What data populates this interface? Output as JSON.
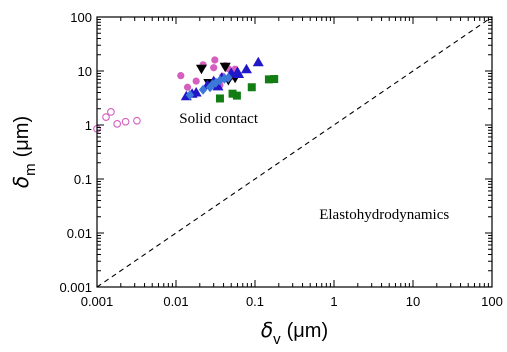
{
  "chart_data": {
    "type": "scatter",
    "title": "",
    "xlabel": {
      "symbol": "δ",
      "subscript": "v",
      "unit": "(μm)"
    },
    "ylabel": {
      "symbol": "δ",
      "subscript": "m",
      "unit": "(μm)"
    },
    "x_scale": "log",
    "y_scale": "log",
    "xlim": [
      0.001,
      100
    ],
    "ylim": [
      0.001,
      100
    ],
    "x_ticks": [
      {
        "value": 0.001,
        "label": "0.001"
      },
      {
        "value": 0.01,
        "label": "0.01"
      },
      {
        "value": 0.1,
        "label": "0.1"
      },
      {
        "value": 1,
        "label": "1"
      },
      {
        "value": 10,
        "label": "10"
      },
      {
        "value": 100,
        "label": "100"
      }
    ],
    "y_ticks": [
      {
        "value": 0.001,
        "label": "0.001"
      },
      {
        "value": 0.01,
        "label": "0.01"
      },
      {
        "value": 0.1,
        "label": "0.1"
      },
      {
        "value": 1,
        "label": "1"
      },
      {
        "value": 10,
        "label": "10"
      },
      {
        "value": 100,
        "label": "100"
      }
    ],
    "grid": false,
    "annotations": [
      {
        "text": "Solid contact",
        "x": 0.011,
        "y": 1.1
      },
      {
        "text": "Elastohydrodynamics",
        "x": 0.65,
        "y": 0.018
      }
    ],
    "reference_line": {
      "style": "dashed",
      "color": "#000000",
      "points": [
        [
          0.001,
          0.001
        ],
        [
          100,
          100
        ]
      ]
    },
    "series": [
      {
        "marker": "circle-open",
        "color": "#d45fbf",
        "points": [
          [
            0.001,
            0.85
          ],
          [
            0.0013,
            1.4
          ],
          [
            0.0015,
            1.75
          ],
          [
            0.0018,
            1.05
          ],
          [
            0.0023,
            1.15
          ],
          [
            0.0032,
            1.2
          ]
        ]
      },
      {
        "marker": "circle",
        "color": "#d45fbf",
        "points": [
          [
            0.0115,
            8.2
          ],
          [
            0.014,
            5.0
          ],
          [
            0.018,
            6.5
          ],
          [
            0.022,
            13.0
          ],
          [
            0.031,
            16.0
          ],
          [
            0.036,
            5.5
          ],
          [
            0.039,
            8.0
          ],
          [
            0.046,
            11.0
          ],
          [
            0.05,
            7.8
          ],
          [
            0.056,
            10.8
          ],
          [
            0.03,
            11.5
          ],
          [
            0.042,
            12.5
          ]
        ]
      },
      {
        "marker": "triangle-down",
        "color": "#000000",
        "points": [
          [
            0.021,
            11.0
          ],
          [
            0.042,
            12.0
          ],
          [
            0.046,
            6.8
          ],
          [
            0.056,
            7.5
          ],
          [
            0.026,
            6.0
          ]
        ]
      },
      {
        "marker": "triangle-up",
        "color": "#1f17c8",
        "points": [
          [
            0.0135,
            3.4
          ],
          [
            0.018,
            4.0
          ],
          [
            0.025,
            5.5
          ],
          [
            0.03,
            6.5
          ],
          [
            0.038,
            7.5
          ],
          [
            0.05,
            9.2
          ],
          [
            0.062,
            8.8
          ],
          [
            0.078,
            10.8
          ],
          [
            0.11,
            14.5
          ],
          [
            0.016,
            3.8
          ],
          [
            0.034,
            5.2
          ],
          [
            0.06,
            9.6
          ]
        ]
      },
      {
        "marker": "diamond",
        "color": "#3c78d8",
        "points": [
          [
            0.015,
            3.6
          ],
          [
            0.022,
            4.5
          ],
          [
            0.029,
            5.6
          ],
          [
            0.032,
            6.1
          ],
          [
            0.036,
            6.7
          ],
          [
            0.041,
            7.2
          ],
          [
            0.046,
            7.5
          ],
          [
            0.027,
            5.0
          ]
        ]
      },
      {
        "marker": "square",
        "color": "#137d13",
        "points": [
          [
            0.036,
            3.1
          ],
          [
            0.052,
            3.8
          ],
          [
            0.059,
            3.5
          ],
          [
            0.091,
            5.0
          ],
          [
            0.15,
            7.0
          ],
          [
            0.175,
            7.1
          ]
        ]
      }
    ]
  }
}
